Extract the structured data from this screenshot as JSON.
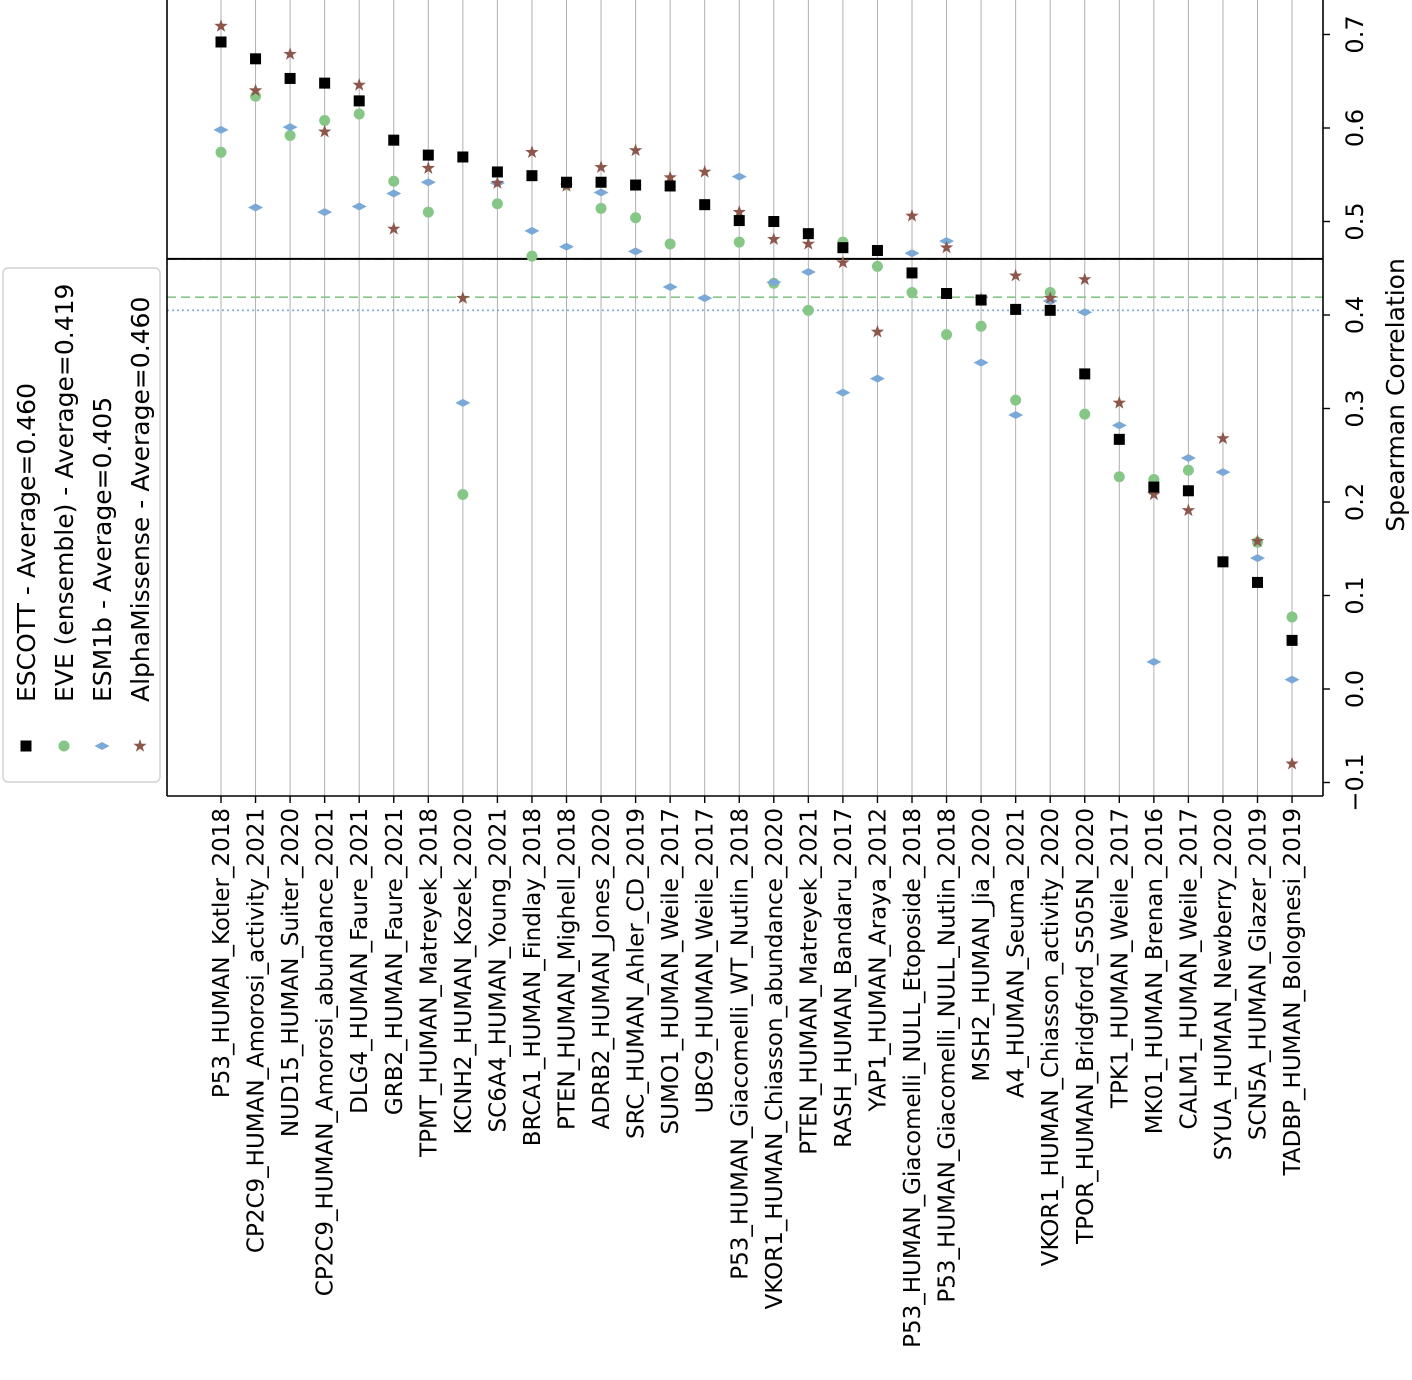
{
  "chart_data": {
    "type": "scatter",
    "orientation": "rotated-90",
    "categories": [
      "P53_HUMAN_Kotler_2018",
      "CP2C9_HUMAN_Amorosi_activity_2021",
      "NUD15_HUMAN_Suiter_2020",
      "CP2C9_HUMAN_Amorosi_abundance_2021",
      "DLG4_HUMAN_Faure_2021",
      "GRB2_HUMAN_Faure_2021",
      "TPMT_HUMAN_Matreyek_2018",
      "KCNH2_HUMAN_Kozek_2020",
      "SC6A4_HUMAN_Young_2021",
      "BRCA1_HUMAN_Findlay_2018",
      "PTEN_HUMAN_Mighell_2018",
      "ADRB2_HUMAN_Jones_2020",
      "SRC_HUMAN_Ahler_CD_2019",
      "SUMO1_HUMAN_Weile_2017",
      "UBC9_HUMAN_Weile_2017",
      "P53_HUMAN_Giacomelli_WT_Nutlin_2018",
      "VKOR1_HUMAN_Chiasson_abundance_2020",
      "PTEN_HUMAN_Matreyek_2021",
      "RASH_HUMAN_Bandaru_2017",
      "YAP1_HUMAN_Araya_2012",
      "P53_HUMAN_Giacomelli_NULL_Etoposide_2018",
      "P53_HUMAN_Giacomelli_NULL_Nutlin_2018",
      "MSH2_HUMAN_Jia_2020",
      "A4_HUMAN_Seuma_2021",
      "VKOR1_HUMAN_Chiasson_activity_2020",
      "TPOR_HUMAN_Bridgford_S505N_2020",
      "TPK1_HUMAN_Weile_2017",
      "MK01_HUMAN_Brenan_2016",
      "CALM1_HUMAN_Weile_2017",
      "SYUA_HUMAN_Newberry_2020",
      "SCN5A_HUMAN_Glazer_2019",
      "TADBP_HUMAN_Bolognesi_2019"
    ],
    "series": [
      {
        "name": "ESCOTT - Average=0.460",
        "color": "#000000",
        "marker": "square",
        "average": 0.46,
        "average_line": "solid",
        "values": [
          0.692,
          0.674,
          0.653,
          0.648,
          0.629,
          0.587,
          0.571,
          0.569,
          0.553,
          0.549,
          0.542,
          0.542,
          0.539,
          0.538,
          0.518,
          0.501,
          0.5,
          0.487,
          0.472,
          0.469,
          0.445,
          0.423,
          0.416,
          0.406,
          0.405,
          0.337,
          0.267,
          0.216,
          0.212,
          0.136,
          0.114,
          0.052
        ]
      },
      {
        "name": "EVE (ensemble) - Average=0.419",
        "color": "#86c686",
        "marker": "circle",
        "average": 0.419,
        "average_line": "dashed",
        "values": [
          0.574,
          0.634,
          0.592,
          0.608,
          0.615,
          0.543,
          0.51,
          0.208,
          0.519,
          0.463,
          0.539,
          0.514,
          0.504,
          0.476,
          0.518,
          0.478,
          0.434,
          0.405,
          0.478,
          0.452,
          0.424,
          0.379,
          0.388,
          0.309,
          0.424,
          0.294,
          0.227,
          0.224,
          0.234,
          0.136,
          0.157,
          0.077
        ]
      },
      {
        "name": "ESM1b - Average=0.405",
        "color": "#7aa9d8",
        "marker": "diamond",
        "average": 0.405,
        "average_line": "dotted",
        "values": [
          0.598,
          0.515,
          0.601,
          0.51,
          0.516,
          0.53,
          0.542,
          0.306,
          0.541,
          0.49,
          0.473,
          0.531,
          0.468,
          0.43,
          0.418,
          0.548,
          0.435,
          0.446,
          0.317,
          0.332,
          0.466,
          0.479,
          0.349,
          0.293,
          0.415,
          0.403,
          0.282,
          0.029,
          0.247,
          0.232,
          0.14,
          0.01
        ]
      },
      {
        "name": "AlphaMissense - Average=0.460",
        "color": "#8c564b",
        "marker": "star",
        "average": 0.46,
        "average_line": "dash-dot",
        "values": [
          0.709,
          0.64,
          0.679,
          0.596,
          0.646,
          0.492,
          0.557,
          0.418,
          0.541,
          0.574,
          0.538,
          0.558,
          0.576,
          0.547,
          0.553,
          0.51,
          0.481,
          0.476,
          0.456,
          0.382,
          0.506,
          0.472,
          0.417,
          0.442,
          0.418,
          0.438,
          0.306,
          0.208,
          0.191,
          0.268,
          0.158,
          -0.08
        ]
      }
    ],
    "ylabel": "Spearman Correlation",
    "xlabel": "",
    "ylim": [
      -0.12,
      0.75
    ],
    "yticks": [
      -0.1,
      0.0,
      0.1,
      0.2,
      0.3,
      0.4,
      0.5,
      0.6,
      0.7
    ],
    "ytick_labels": [
      "−0.1",
      "0.0",
      "0.1",
      "0.2",
      "0.3",
      "0.4",
      "0.5",
      "0.6",
      "0.7"
    ],
    "grid": "vertical-per-category",
    "legend_placement": "left"
  }
}
